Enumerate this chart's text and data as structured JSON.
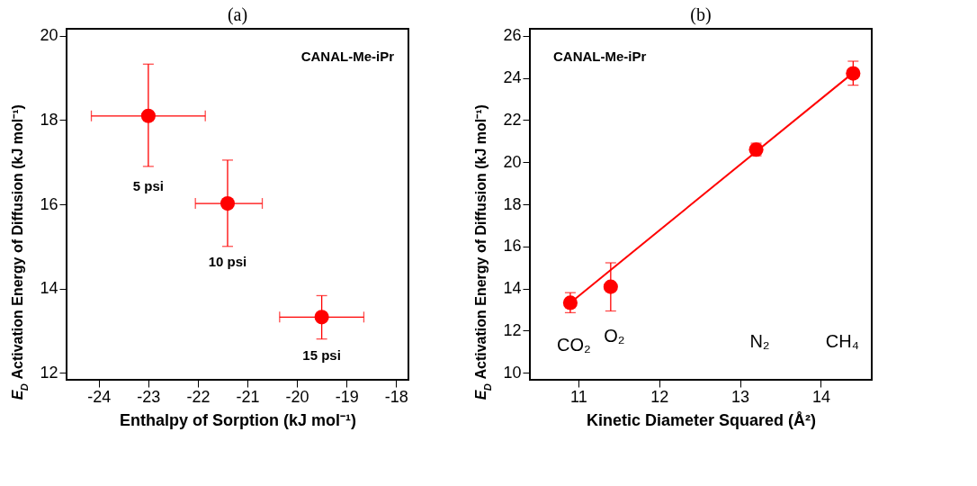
{
  "chart_data": [
    {
      "type": "scatter",
      "title": "(a)",
      "xlabel": "Enthalpy of Sorption (kJ mol⁻¹)",
      "ylabel": "E$_{D}$ Activation Energy of Diffusion (kJ mol⁻¹)",
      "xlim": [
        -24.65,
        -17.75
      ],
      "xticks": [
        -24,
        -23,
        -22,
        -21,
        -20,
        -19,
        -18
      ],
      "ylim": [
        11.83,
        20.17
      ],
      "yticks": [
        12,
        14,
        16,
        18,
        20
      ],
      "grid": false,
      "marker": "circle",
      "series": [
        {
          "color": "#ff0000",
          "x": [
            -23.0,
            -21.4,
            -19.5
          ],
          "values": [
            18.1,
            16.02,
            13.32
          ],
          "errors": [
            [
              16.9,
              19.33
            ],
            [
              15.0,
              17.05
            ],
            [
              12.8,
              13.83
            ]
          ],
          "xerrors": [
            [
              -24.15,
              -21.85
            ],
            [
              -22.05,
              -20.7
            ],
            [
              -20.35,
              -18.65
            ]
          ]
        }
      ],
      "annotations": [
        "CANAL-Me-iPr",
        "5 psi",
        "10 psi",
        "15 psi"
      ]
    },
    {
      "type": "scatter",
      "title": "(b)",
      "xlabel": "Kinetic Diameter Squared (Å²)",
      "ylabel": "E$_{D}$ Activation Energy of Diffusion (kJ mol⁻¹)",
      "xlim": [
        10.4,
        14.63
      ],
      "xticks": [
        11,
        12,
        13,
        14
      ],
      "ylim": [
        9.66,
        26.34
      ],
      "yticks": [
        10,
        12,
        14,
        16,
        18,
        20,
        22,
        24,
        26
      ],
      "grid": false,
      "marker": "circle",
      "series": [
        {
          "color": "#ff0000",
          "x": [
            10.9,
            11.4,
            13.2,
            14.4
          ],
          "values": [
            13.32,
            14.08,
            20.6,
            24.22
          ],
          "errors": [
            [
              12.85,
              13.8
            ],
            [
              12.93,
              15.22
            ],
            [
              20.3,
              20.9
            ],
            [
              23.66,
              24.8
            ]
          ]
        },
        {
          "type": "line",
          "color": "#ff0000",
          "marker": "none",
          "line_style": "solid",
          "x": [
            10.9,
            14.4
          ],
          "values": [
            13.32,
            24.25
          ]
        }
      ],
      "annotations": [
        "CANAL-Me-iPr",
        "CO₂",
        "O₂",
        "N₂",
        "CH₄"
      ]
    }
  ]
}
